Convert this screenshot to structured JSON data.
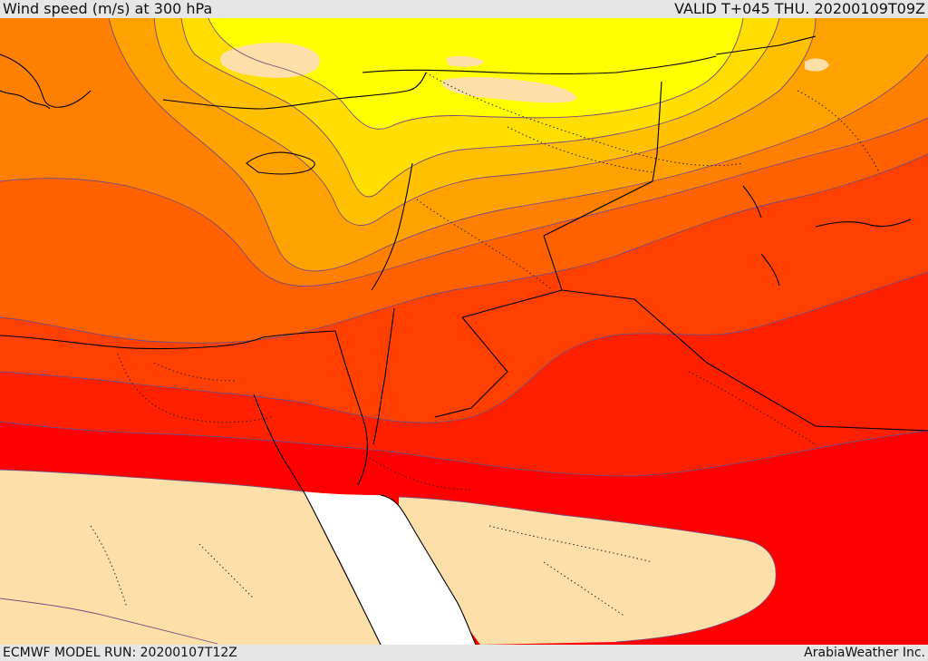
{
  "header": {
    "title": "Wind speed (m/s) at 300 hPa",
    "valid": "VALID T+045 THU. 20200109T09Z"
  },
  "footer": {
    "model_run": "ECMWF MODEL RUN: 20200107T12Z",
    "brand": "ArabiaWeather Inc."
  },
  "colors": {
    "light": "#ffff00",
    "gold": "#ffde00",
    "amber": "#ffc000",
    "orange_light": "#ffa200",
    "orange": "#ff8000",
    "orange_dark": "#ff6000",
    "red_orange": "#ff4000",
    "red_dark": "#ff2000",
    "red": "#ff0000",
    "land_below_threshold": "#fde0a9",
    "sea_below_threshold": "#ffffff"
  }
}
